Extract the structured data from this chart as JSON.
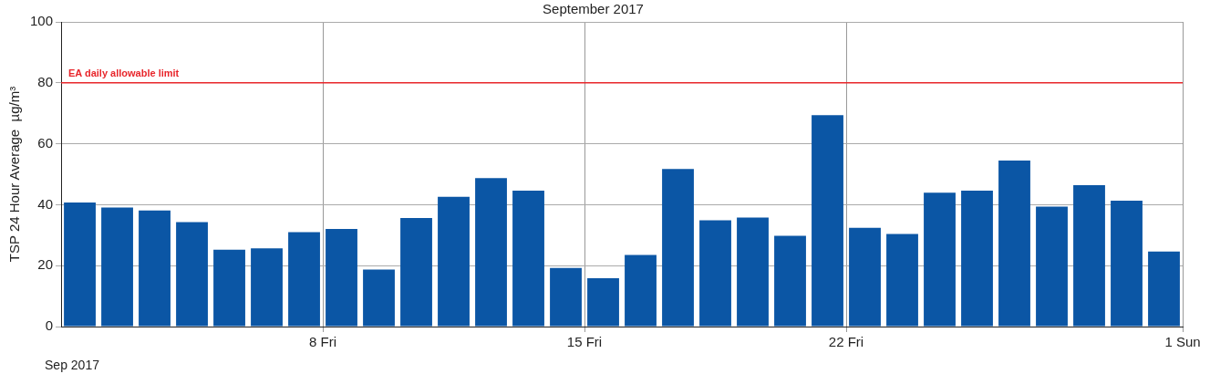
{
  "chart_data": {
    "type": "bar",
    "title": "September 2017",
    "ylabel": "TSP 24 Hour Average  µg/m³",
    "x": [
      "2017-09-01T12:00",
      "2017-09-02T12:00",
      "2017-09-03T12:00",
      "2017-09-04T12:00",
      "2017-09-05T12:00",
      "2017-09-06T12:00",
      "2017-09-07T12:00",
      "2017-09-08T12:00",
      "2017-09-09T12:00",
      "2017-09-10T12:00",
      "2017-09-11T12:00",
      "2017-09-12T12:00",
      "2017-09-13T12:00",
      "2017-09-14T12:00",
      "2017-09-15T12:00",
      "2017-09-16T12:00",
      "2017-09-17T12:00",
      "2017-09-18T12:00",
      "2017-09-19T12:00",
      "2017-09-20T12:00",
      "2017-09-21T12:00",
      "2017-09-22T12:00",
      "2017-09-23T12:00",
      "2017-09-24T12:00",
      "2017-09-25T12:00",
      "2017-09-26T12:00",
      "2017-09-27T12:00",
      "2017-09-28T12:00",
      "2017-09-29T12:00",
      "2017-09-30T12:00"
    ],
    "values": [
      40.7,
      39.1,
      38.1,
      34.3,
      25.2,
      25.7,
      31.0,
      32.0,
      18.7,
      35.6,
      42.6,
      48.7,
      44.6,
      19.2,
      15.9,
      23.5,
      51.7,
      34.9,
      35.8,
      29.8,
      69.4,
      32.4,
      30.4,
      43.9,
      44.6,
      54.5,
      39.4,
      46.4,
      41.3,
      24.6
    ],
    "color": "#0b56a5",
    "xlim": [
      "2017-09-01",
      "2017-10-01"
    ],
    "xticks": [
      {
        "value": "2017-09-08",
        "label": "8 Fri"
      },
      {
        "value": "2017-09-15",
        "label": "15 Fri"
      },
      {
        "value": "2017-09-22",
        "label": "22 Fri"
      },
      {
        "value": "2017-10-01",
        "label": "1 Sun"
      }
    ],
    "ylim": [
      0,
      100
    ],
    "yticks": [
      0,
      20,
      40,
      60,
      80,
      100
    ],
    "grid": true,
    "ref_lines": [
      {
        "axis": "y",
        "value": 80,
        "label": "EA daily allowable limit",
        "color": "#e8262b"
      }
    ],
    "annotations": [
      "Sep 2017"
    ]
  }
}
